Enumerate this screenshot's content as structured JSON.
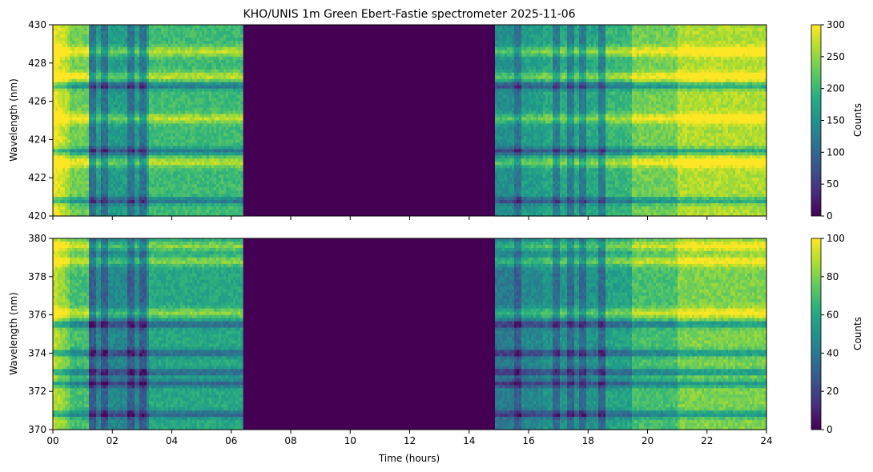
{
  "chart_data": [
    {
      "type": "heatmap",
      "title": "KHO/UNIS 1m Green Ebert-Fastie spectrometer 2025-11-06",
      "xlabel": "",
      "ylabel": "Wavelength (nm)",
      "xlim": [
        0,
        24
      ],
      "ylim": [
        420,
        430
      ],
      "x_ticks": [
        "00",
        "02",
        "04",
        "06",
        "08",
        "10",
        "12",
        "14",
        "16",
        "18",
        "20",
        "22",
        "24"
      ],
      "y_ticks": [
        "420",
        "422",
        "424",
        "426",
        "428",
        "430"
      ],
      "colorbar": {
        "label": "Counts",
        "vmin": 0,
        "vmax": 300,
        "ticks": [
          "0",
          "50",
          "100",
          "150",
          "200",
          "250",
          "300"
        ]
      },
      "colormap": "viridis",
      "no_data_intervals_hours": [
        [
          6.4,
          14.9
        ]
      ],
      "high_count_wavelengths_nm": [
        428.6,
        427.3,
        425.1,
        422.8
      ],
      "low_count_wavelengths_nm": [
        423.4,
        426.8,
        420.8
      ]
    },
    {
      "type": "heatmap",
      "title": "",
      "xlabel": "Time (hours)",
      "ylabel": "Wavelength (nm)",
      "xlim": [
        0,
        24
      ],
      "ylim": [
        370,
        380
      ],
      "x_ticks": [
        "00",
        "02",
        "04",
        "06",
        "08",
        "10",
        "12",
        "14",
        "16",
        "18",
        "20",
        "22",
        "24"
      ],
      "y_ticks": [
        "370",
        "372",
        "374",
        "376",
        "378",
        "380"
      ],
      "colorbar": {
        "label": "Counts",
        "vmin": 0,
        "vmax": 100,
        "ticks": [
          "0",
          "20",
          "40",
          "60",
          "80",
          "100"
        ]
      },
      "colormap": "viridis",
      "no_data_intervals_hours": [
        [
          6.4,
          14.9
        ]
      ],
      "high_count_wavelengths_nm": [
        378.8,
        376.1,
        379.6
      ],
      "low_count_wavelengths_nm": [
        374.0,
        372.4,
        375.5,
        373.0,
        370.8
      ]
    }
  ]
}
